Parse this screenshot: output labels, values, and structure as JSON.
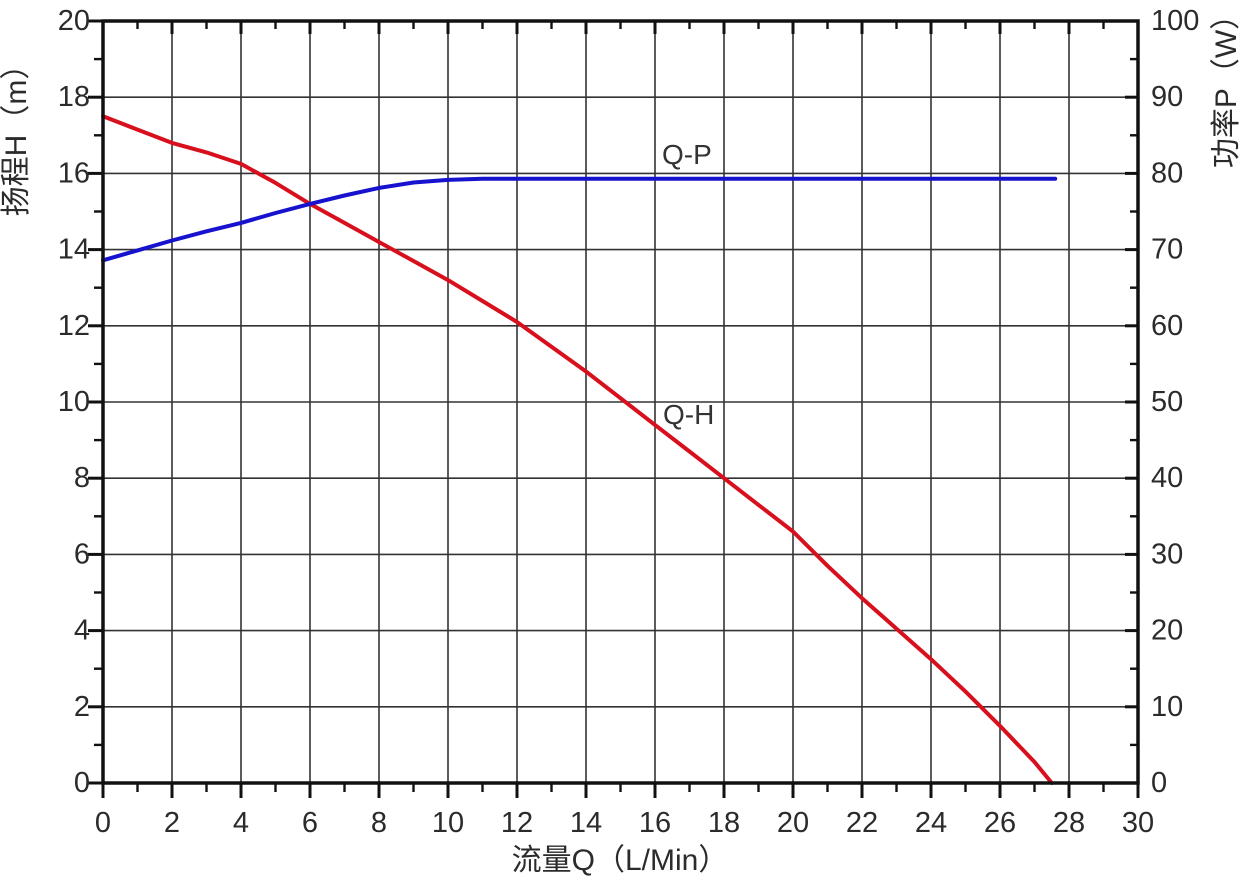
{
  "chart_data": {
    "type": "line",
    "grid": true,
    "x_axis": {
      "label": "流量Q（L/Min）",
      "min": 0,
      "max": 30,
      "major_ticks": [
        0,
        2,
        4,
        6,
        8,
        10,
        12,
        14,
        16,
        18,
        20,
        22,
        24,
        26,
        28,
        30
      ],
      "minor_ticks": [
        1,
        3,
        5,
        7,
        9,
        11,
        13,
        15,
        17,
        19,
        21,
        23,
        25,
        27,
        29
      ]
    },
    "y_left": {
      "label": "扬程H（m）",
      "min": 0,
      "max": 20,
      "major_ticks": [
        0,
        2,
        4,
        6,
        8,
        10,
        12,
        14,
        16,
        18,
        20
      ],
      "minor_ticks": [
        1,
        3,
        5,
        7,
        9,
        11,
        13,
        15,
        17,
        19
      ]
    },
    "y_right": {
      "label": "功率P（W）",
      "min": 0,
      "max": 100,
      "major_ticks": [
        0,
        10,
        20,
        30,
        40,
        50,
        60,
        70,
        80,
        90,
        100
      ],
      "minor_ticks": [
        5,
        15,
        25,
        35,
        45,
        55,
        65,
        75,
        85,
        95
      ]
    },
    "series": [
      {
        "name": "Q-H",
        "axis": "left",
        "color": "#d8101e",
        "points": [
          [
            0,
            17.5
          ],
          [
            1,
            17.15
          ],
          [
            2,
            16.8
          ],
          [
            3,
            16.55
          ],
          [
            4,
            16.25
          ],
          [
            5,
            15.75
          ],
          [
            6,
            15.2
          ],
          [
            7,
            14.7
          ],
          [
            8,
            14.2
          ],
          [
            9,
            13.7
          ],
          [
            10,
            13.2
          ],
          [
            11,
            12.65
          ],
          [
            12,
            12.1
          ],
          [
            13,
            11.45
          ],
          [
            14,
            10.8
          ],
          [
            15,
            10.1
          ],
          [
            16,
            9.4
          ],
          [
            17,
            8.7
          ],
          [
            18,
            8.0
          ],
          [
            19,
            7.3
          ],
          [
            20,
            6.6
          ],
          [
            21,
            5.7
          ],
          [
            22,
            4.85
          ],
          [
            23,
            4.05
          ],
          [
            24,
            3.25
          ],
          [
            25,
            2.4
          ],
          [
            26,
            1.5
          ],
          [
            27,
            0.55
          ],
          [
            27.5,
            0
          ]
        ]
      },
      {
        "name": "Q-P",
        "axis": "right",
        "color": "#1612cd",
        "points": [
          [
            0,
            68.6
          ],
          [
            1,
            69.9
          ],
          [
            2,
            71.2
          ],
          [
            3,
            72.4
          ],
          [
            4,
            73.5
          ],
          [
            5,
            74.8
          ],
          [
            6,
            76.0
          ],
          [
            7,
            77.1
          ],
          [
            8,
            78.1
          ],
          [
            9,
            78.8
          ],
          [
            10,
            79.15
          ],
          [
            11,
            79.3
          ],
          [
            13,
            79.3
          ],
          [
            15,
            79.3
          ],
          [
            17,
            79.3
          ],
          [
            19,
            79.3
          ],
          [
            21,
            79.3
          ],
          [
            23,
            79.3
          ],
          [
            25,
            79.3
          ],
          [
            27.6,
            79.3
          ]
        ]
      }
    ],
    "colors": {
      "grid": "#333333",
      "axis": "#111111",
      "text": "#2b2b2b"
    }
  }
}
